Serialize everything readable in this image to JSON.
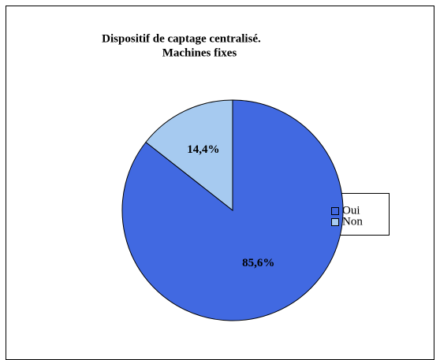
{
  "chart_data": {
    "type": "pie",
    "title": "Dispositif de captage centralisé.",
    "subtitle": "Machines fixes",
    "categories": [
      "Oui",
      "Non"
    ],
    "values": [
      85.6,
      14.4
    ],
    "value_labels": [
      "85,6%",
      "14,4%"
    ],
    "colors": [
      "#4169e1",
      "#a6caf0"
    ],
    "legend": "right"
  }
}
